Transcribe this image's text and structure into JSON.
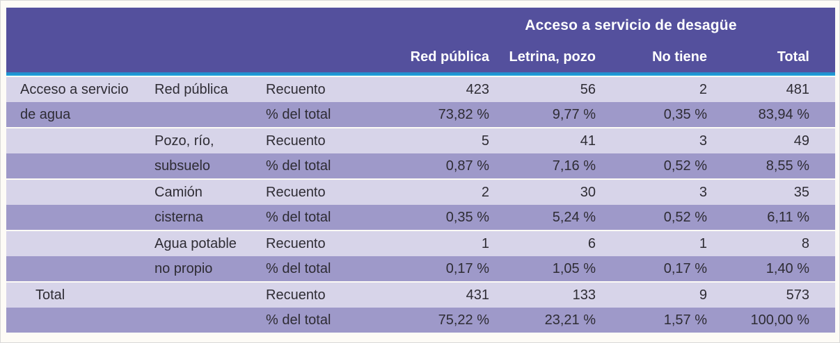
{
  "table": {
    "title": "Acceso a servicio de desagüe",
    "col_headers": [
      "Red pública",
      "Letrina, pozo",
      "No tiene",
      "Total"
    ],
    "row_group_label_line1": "Acceso a servicio",
    "row_group_label_line2": "de agua",
    "total_label": "Total",
    "measure_count": "Recuento",
    "measure_percent": "% del total",
    "categories": [
      {
        "line1": "Red pública",
        "line2": ""
      },
      {
        "line1": "Pozo, río,",
        "line2": "subsuelo"
      },
      {
        "line1": "Camión",
        "line2": "cisterna"
      },
      {
        "line1": "Agua potable",
        "line2": "no propio"
      }
    ],
    "counts": [
      [
        "423",
        "56",
        "2",
        "481"
      ],
      [
        "5",
        "41",
        "3",
        "49"
      ],
      [
        "2",
        "30",
        "3",
        "35"
      ],
      [
        "1",
        "6",
        "1",
        "8"
      ],
      [
        "431",
        "133",
        "9",
        "573"
      ]
    ],
    "percents": [
      [
        "73,82 %",
        "9,77 %",
        "0,35 %",
        "83,94 %"
      ],
      [
        "0,87 %",
        "7,16 %",
        "0,52 %",
        "8,55 %"
      ],
      [
        "0,35 %",
        "5,24 %",
        "0,52 %",
        "6,11 %"
      ],
      [
        "0,17 %",
        "1,05 %",
        "0,17 %",
        "1,40 %"
      ],
      [
        "75,22 %",
        "23,21 %",
        "1,57 %",
        "100,00 %"
      ]
    ]
  },
  "colors": {
    "header_bg": "#54509d",
    "accent_line": "#17a4dc",
    "row_light": "#d7d4e9",
    "row_dark": "#9e99c9",
    "header_text": "#ffffff",
    "body_text": "#2e2c34"
  }
}
